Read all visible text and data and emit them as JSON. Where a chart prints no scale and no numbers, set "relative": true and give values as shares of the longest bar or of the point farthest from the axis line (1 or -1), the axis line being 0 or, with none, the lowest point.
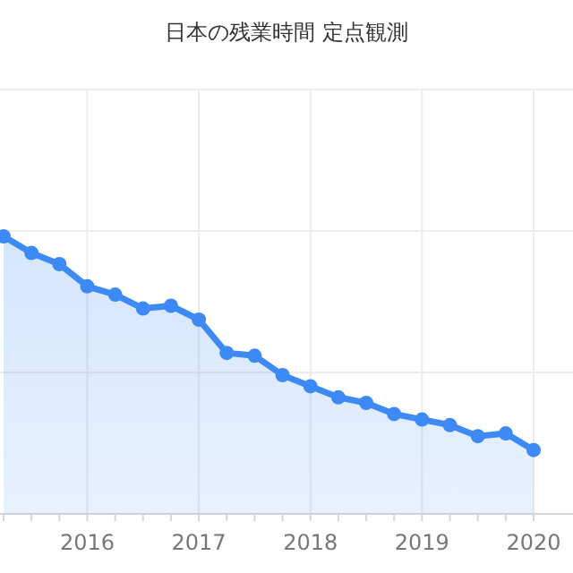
{
  "chart_data": {
    "type": "area",
    "title": "日本の残業時間 定点観測",
    "relative": true,
    "grid": true,
    "marker": "circle",
    "color": "#3d8af7",
    "x": [
      "2015-04",
      "2015-07",
      "2015-10",
      "2016-01",
      "2016-04",
      "2016-07",
      "2016-10",
      "2017-01",
      "2017-04",
      "2017-07",
      "2017-10",
      "2018-01",
      "2018-04",
      "2018-07",
      "2018-10",
      "2019-01",
      "2019-04",
      "2019-07",
      "2019-10",
      "2020-01"
    ],
    "values": [
      1.0,
      0.94,
      0.9,
      0.82,
      0.79,
      0.74,
      0.75,
      0.7,
      0.58,
      0.57,
      0.5,
      0.46,
      0.42,
      0.4,
      0.36,
      0.34,
      0.32,
      0.28,
      0.29,
      0.23
    ],
    "xlim": [
      "2015-04",
      "2020-01"
    ],
    "xticks": [
      {
        "value": "2016-01",
        "label": "2016"
      },
      {
        "value": "2017-01",
        "label": "2017"
      },
      {
        "value": "2018-01",
        "label": "2018"
      },
      {
        "value": "2019-01",
        "label": "2019"
      },
      {
        "value": "2020-01",
        "label": "2020"
      }
    ]
  }
}
